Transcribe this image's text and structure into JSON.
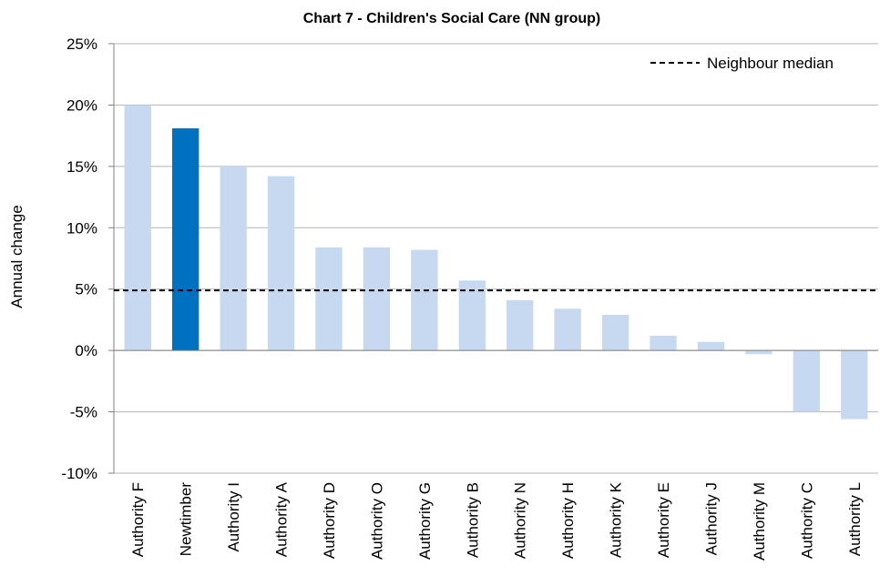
{
  "chart_data": {
    "type": "bar",
    "title": "Chart 7 - Children's Social Care (NN group)",
    "xlabel": "",
    "ylabel": "Annual change",
    "ylim": [
      -10,
      25
    ],
    "yticks": [
      -10,
      -5,
      0,
      5,
      10,
      15,
      20,
      25
    ],
    "ytick_labels": [
      "-10%",
      "-5%",
      "0%",
      "5%",
      "10%",
      "15%",
      "20%",
      "25%"
    ],
    "categories": [
      "Authority F",
      "Newtimber",
      "Authority I",
      "Authority A",
      "Authority D",
      "Authority O",
      "Authority G",
      "Authority B",
      "Authority N",
      "Authority H",
      "Authority K",
      "Authority E",
      "Authority J",
      "Authority M",
      "Authority C",
      "Authority L"
    ],
    "values": [
      20.0,
      18.1,
      15.0,
      14.2,
      8.4,
      8.4,
      8.2,
      5.7,
      4.1,
      3.4,
      2.9,
      1.2,
      0.7,
      -0.3,
      -5.0,
      -5.6
    ],
    "highlight": "Newtimber",
    "reference_line": {
      "name": "Neighbour median",
      "value": 4.9
    },
    "legend": {
      "position": "top-right",
      "entries": [
        "Neighbour median"
      ]
    },
    "grid": true,
    "colors": {
      "bar": "#c6d9f1",
      "highlight": "#0070c0",
      "grid": "#b3b3b3",
      "axis": "#808080",
      "median": "#000000"
    }
  }
}
